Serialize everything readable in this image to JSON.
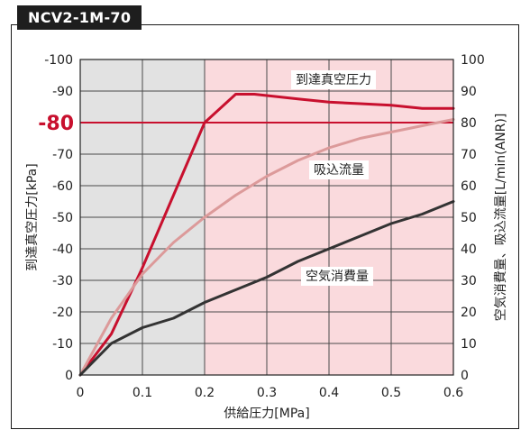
{
  "header": {
    "model": "NCV2-1M-70"
  },
  "chart_data": {
    "type": "line",
    "xlabel": "供給圧力[MPa]",
    "ylabel_left": "到達真空圧力[kPa]",
    "ylabel_right": "空気消費量、吸込流量[L/min(ANR)]",
    "xlim": [
      0,
      0.6
    ],
    "x_ticks": [
      0,
      0.1,
      0.2,
      0.3,
      0.4,
      0.5,
      0.6
    ],
    "ylim_left": [
      0,
      -100
    ],
    "y_ticks_left": [
      0,
      -10,
      -20,
      -30,
      -40,
      -50,
      -60,
      -70,
      -80,
      -90,
      -100
    ],
    "ylim_right": [
      0,
      100
    ],
    "y_ticks_right": [
      0,
      10,
      20,
      30,
      40,
      50,
      60,
      70,
      80,
      90,
      100
    ],
    "grid": true,
    "regions": [
      {
        "x_start": 0,
        "x_end": 0.2,
        "color": "#e2e2e2"
      },
      {
        "x_start": 0.2,
        "x_end": 0.6,
        "color": "#fadadd"
      }
    ],
    "reference_line": {
      "value": -80,
      "label": "-80",
      "color": "#c8102e"
    },
    "series": [
      {
        "name": "到達真空圧力",
        "axis": "left",
        "color": "#c8102e",
        "x": [
          0,
          0.05,
          0.1,
          0.15,
          0.2,
          0.25,
          0.28,
          0.35,
          0.4,
          0.45,
          0.5,
          0.55,
          0.6
        ],
        "values": [
          0,
          -13,
          -34,
          -57,
          -80,
          -89,
          -89,
          -87.5,
          -86.5,
          -86,
          -85.5,
          -84.5,
          -84.5
        ]
      },
      {
        "name": "吸込流量",
        "axis": "right",
        "color": "#dc9a9a",
        "x": [
          0,
          0.05,
          0.1,
          0.15,
          0.2,
          0.25,
          0.3,
          0.35,
          0.4,
          0.45,
          0.5,
          0.55,
          0.6
        ],
        "values": [
          0,
          18,
          32,
          42,
          50,
          57,
          63,
          68,
          72,
          75,
          77,
          79,
          81
        ]
      },
      {
        "name": "空気消費量",
        "axis": "right",
        "color": "#333333",
        "x": [
          0,
          0.05,
          0.1,
          0.15,
          0.2,
          0.25,
          0.3,
          0.35,
          0.4,
          0.45,
          0.5,
          0.55,
          0.6
        ],
        "values": [
          0,
          10,
          15,
          18,
          23,
          27,
          31,
          36,
          40,
          44,
          48,
          51,
          55
        ]
      }
    ]
  }
}
